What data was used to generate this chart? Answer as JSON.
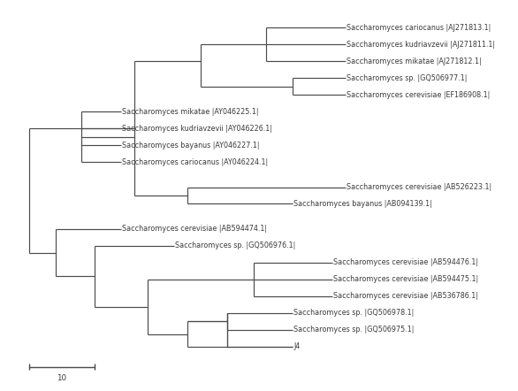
{
  "taxa": [
    "Saccharomyces cariocanus |AJ271813.1|",
    "Saccharomyces kudriavzevii |AJ271811.1|",
    "Saccharomyces mikatae |AJ271812.1|",
    "Saccharomyces sp. |GQ506977.1|",
    "Saccharomyces cerevisiae |EF186908.1|",
    "Saccharomyces mikatae |AY046225.1|",
    "Saccharomyces kudriavzevii |AY046226.1|",
    "Saccharomyces bayanus |AY046227.1|",
    "Saccharomyces cariocanus |AY046224.1|",
    "Saccharomyces cerevisiae |AB526223.1|",
    "Saccharomyces bayanus |AB094139.1|",
    "Saccharomyces cerevisiae |AB594474.1|",
    "Saccharomyces sp. |GQ506976.1|",
    "Saccharomyces cerevisiae |AB594476.1|",
    "Saccharomyces cerevisiae |AB594475.1|",
    "Saccharomyces cerevisiae |AB536786.1|",
    "Saccharomyces sp. |GQ506978.1|",
    "Saccharomyces sp. |GQ506975.1|",
    "J4"
  ],
  "y_positions": [
    19,
    18,
    17,
    16,
    15,
    14,
    13,
    12,
    11,
    9.5,
    8.5,
    7,
    6,
    5,
    4,
    3,
    2,
    1,
    0
  ],
  "line_color": "#4a4a4a",
  "text_color": "#3a3a3a",
  "font_size": 5.8,
  "scale_bar_value": "10",
  "background_color": "#ffffff"
}
